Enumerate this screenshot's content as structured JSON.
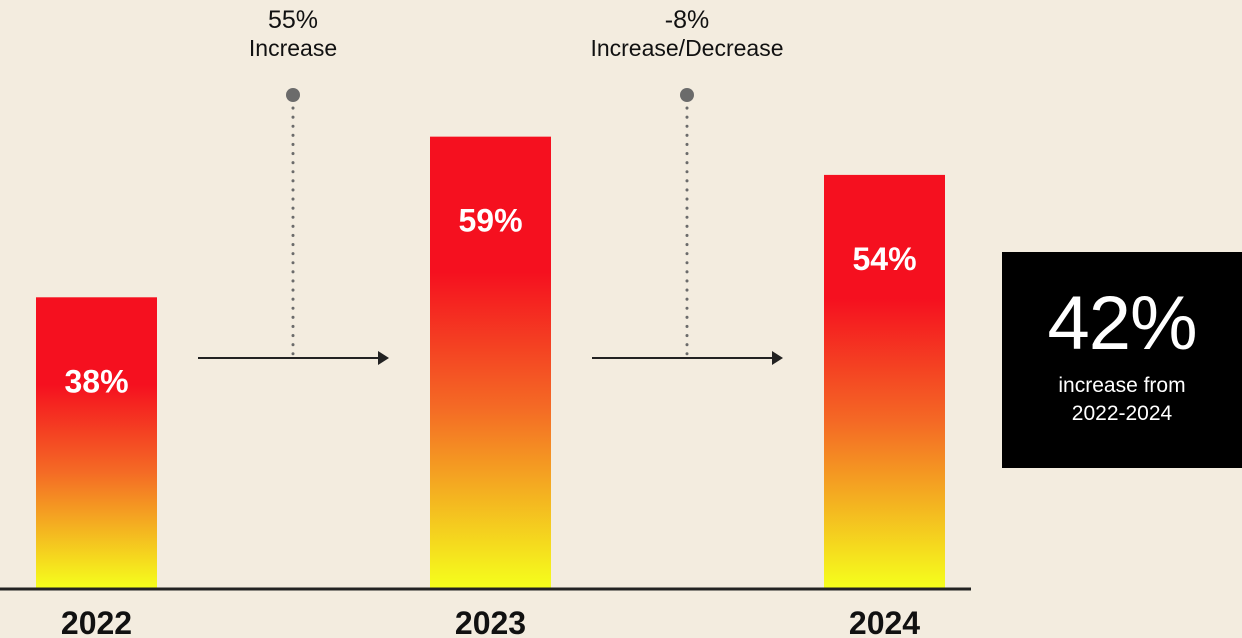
{
  "chart_data": {
    "type": "bar",
    "categories": [
      "2022",
      "2023",
      "2024"
    ],
    "values": [
      38,
      59,
      54
    ],
    "value_labels": [
      "38%",
      "59%",
      "54%"
    ],
    "ylim": [
      0,
      70
    ],
    "grid": false,
    "bar_gradient": [
      "#f5101f",
      "#f5ff1c"
    ],
    "changes": [
      {
        "from": "2022",
        "to": "2023",
        "value": "55%",
        "label": "Increase"
      },
      {
        "from": "2023",
        "to": "2024",
        "value": "-8%",
        "label": "Increase/Decrease"
      }
    ]
  },
  "summary": {
    "value": "42%",
    "description": "increase from 2022-2024"
  },
  "colors": {
    "background": "#f3ecdf",
    "bar_top": "#f5101f",
    "bar_bottom": "#f5ff1c",
    "axis": "#222222",
    "connector_dot": "#6b6b6b",
    "summary_box": "#000000"
  }
}
